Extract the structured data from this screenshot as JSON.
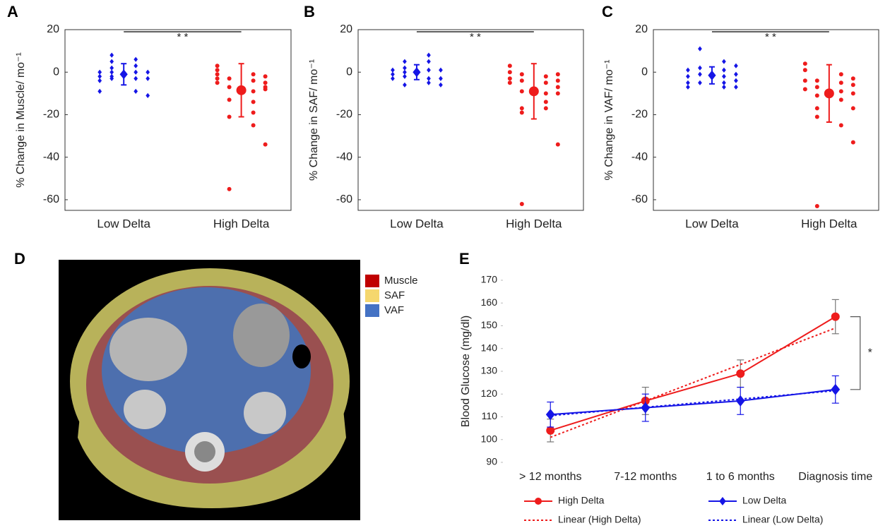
{
  "chart_data": [
    {
      "type": "strip",
      "panel": "A",
      "ylabel": "% Change in Muscle/ mo⁻¹",
      "categories": [
        "Low Delta",
        "High Delta"
      ],
      "annotation": "* *",
      "ylim": [
        -65,
        20
      ],
      "yticks": [
        20,
        0,
        -20,
        -40,
        -60
      ],
      "groups": [
        {
          "color": "#1515e6",
          "marker": "diamond",
          "columns": [
            [
              0,
              -2,
              -4,
              -9
            ],
            [
              8,
              5,
              2,
              0,
              -2,
              -3
            ],
            [
              6,
              3,
              0,
              -3,
              -9
            ],
            [
              0,
              -3,
              -11
            ]
          ],
          "mean": -1,
          "error": 5
        },
        {
          "color": "#ee1c1c",
          "marker": "circle",
          "columns": [
            [
              3,
              1,
              -1,
              -3,
              -5
            ],
            [
              -3,
              -7,
              -13,
              -21,
              -55
            ],
            [
              -1,
              -4,
              -9,
              -14,
              -19,
              -25
            ],
            [
              -2,
              -5,
              -7,
              -8,
              -34
            ]
          ],
          "mean": -8.5,
          "error": 12.5
        }
      ]
    },
    {
      "type": "strip",
      "panel": "B",
      "ylabel": "% Change in SAF/ mo⁻¹",
      "categories": [
        "Low Delta",
        "High Delta"
      ],
      "annotation": "* *",
      "ylim": [
        -65,
        20
      ],
      "yticks": [
        20,
        0,
        -20,
        -40,
        -60
      ],
      "groups": [
        {
          "color": "#1515e6",
          "marker": "diamond",
          "columns": [
            [
              1,
              -1,
              -3
            ],
            [
              5,
              2,
              0,
              -2,
              -6
            ],
            [
              8,
              5,
              1,
              -3,
              -5
            ],
            [
              1,
              -3,
              -6
            ]
          ],
          "mean": 0,
          "error": 3.5
        },
        {
          "color": "#ee1c1c",
          "marker": "circle",
          "columns": [
            [
              3,
              0,
              -3,
              -5
            ],
            [
              -1,
              -4,
              -9,
              -17,
              -19,
              -62
            ],
            [
              -2,
              -5,
              -10,
              -14,
              -17
            ],
            [
              -1,
              -4,
              -7,
              -10,
              -34
            ]
          ],
          "mean": -9,
          "error": 13
        }
      ]
    },
    {
      "type": "strip",
      "panel": "C",
      "ylabel": "% Change in VAF/ mo⁻¹",
      "categories": [
        "Low Delta",
        "High Delta"
      ],
      "annotation": "* *",
      "ylim": [
        -65,
        20
      ],
      "yticks": [
        20,
        0,
        -20,
        -40,
        -60
      ],
      "groups": [
        {
          "color": "#1515e6",
          "marker": "diamond",
          "columns": [
            [
              1,
              -2,
              -5,
              -7
            ],
            [
              11,
              2,
              -1,
              -5
            ],
            [
              5,
              1,
              -2,
              -5,
              -7
            ],
            [
              3,
              -1,
              -4,
              -7
            ]
          ],
          "mean": -1.5,
          "error": 4
        },
        {
          "color": "#ee1c1c",
          "marker": "circle",
          "columns": [
            [
              4,
              1,
              -4,
              -8
            ],
            [
              -4,
              -7,
              -11,
              -17,
              -21,
              -63
            ],
            [
              -1,
              -5,
              -9,
              -13,
              -25
            ],
            [
              -3,
              -6,
              -10,
              -17,
              -33
            ]
          ],
          "mean": -10,
          "error": 13.5
        }
      ]
    },
    {
      "type": "line",
      "panel": "E",
      "ylabel": "Blood Glucose (mg/dl)",
      "annotation": "*",
      "categories": [
        "> 12 months",
        "7-12 months",
        "1 to 6 months",
        "Diagnosis time"
      ],
      "ylim": [
        90,
        170
      ],
      "yticks": [
        90,
        100,
        110,
        120,
        130,
        140,
        150,
        160,
        170
      ],
      "series": [
        {
          "name": "High Delta",
          "color": "#ee1c1c",
          "marker": "circle",
          "values": [
            104,
            117,
            129,
            154
          ],
          "errors": [
            5,
            6,
            6,
            7.5
          ]
        },
        {
          "name": "Low Delta",
          "color": "#1515e6",
          "marker": "diamond",
          "values": [
            111,
            114,
            117,
            122
          ],
          "errors": [
            5.5,
            6,
            6,
            6
          ]
        },
        {
          "name": "Linear (High Delta)",
          "color": "#ee1c1c",
          "dash": true,
          "values": [
            101,
            117,
            133,
            149
          ]
        },
        {
          "name": "Linear (Low Delta)",
          "color": "#1515e6",
          "dash": true,
          "values": [
            110.5,
            114.2,
            117.8,
            121.5
          ]
        }
      ]
    }
  ],
  "figure_d": {
    "panel": "D",
    "legend": [
      {
        "label": "Muscle",
        "color": "#c00000"
      },
      {
        "label": "SAF",
        "color": "#f5d76e"
      },
      {
        "label": "VAF",
        "color": "#4472c4"
      }
    ]
  }
}
